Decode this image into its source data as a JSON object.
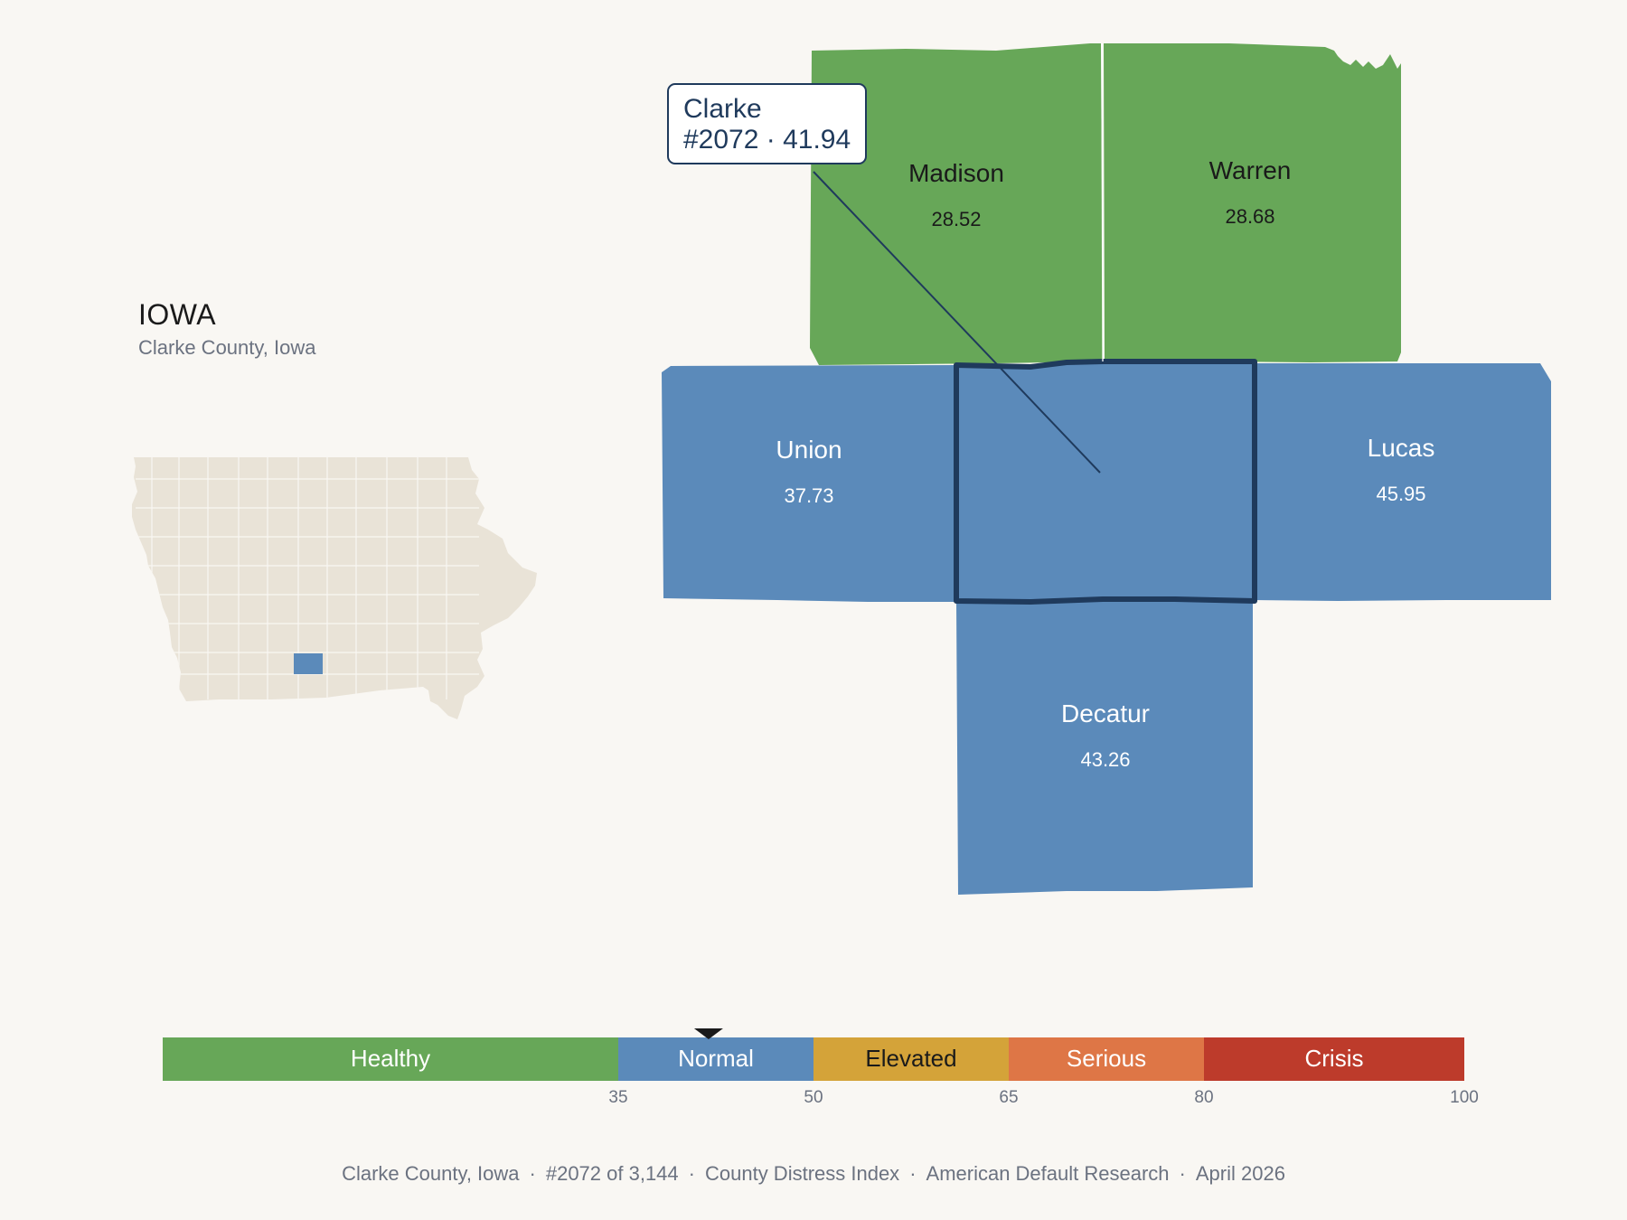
{
  "state": {
    "name": "IOWA",
    "subtitle": "Clarke County, Iowa"
  },
  "callout": {
    "name": "Clarke",
    "detail": "#2072 · 41.94"
  },
  "counties": [
    {
      "name": "Madison",
      "value": "28.52",
      "category": "Healthy"
    },
    {
      "name": "Warren",
      "value": "28.68",
      "category": "Healthy"
    },
    {
      "name": "Union",
      "value": "37.73",
      "category": "Normal"
    },
    {
      "name": "Clarke",
      "value": "41.94",
      "category": "Normal",
      "highlighted": true
    },
    {
      "name": "Lucas",
      "value": "45.95",
      "category": "Normal"
    },
    {
      "name": "Decatur",
      "value": "43.26",
      "category": "Normal"
    }
  ],
  "legend": {
    "min": 0,
    "max": 100,
    "marker_value": 41.94,
    "segments": [
      {
        "label": "Healthy",
        "from": 0,
        "to": 35,
        "color": "#67a758"
      },
      {
        "label": "Normal",
        "from": 35,
        "to": 50,
        "color": "#5b8aba"
      },
      {
        "label": "Elevated",
        "from": 50,
        "to": 65,
        "color": "#d4a339"
      },
      {
        "label": "Serious",
        "from": 65,
        "to": 80,
        "color": "#de7646"
      },
      {
        "label": "Crisis",
        "from": 80,
        "to": 100,
        "color": "#bd3b2b"
      }
    ],
    "ticks": [
      "35",
      "50",
      "65",
      "80",
      "100"
    ]
  },
  "colors": {
    "healthy": "#67a758",
    "normal": "#5b8aba",
    "outline": "#1f3a5c",
    "state_fill": "#e9e3d7",
    "background": "#f9f7f3"
  },
  "footer": {
    "items": [
      "Clarke County, Iowa",
      "#2072 of 3,144",
      "County Distress Index",
      "American Default Research",
      "April 2026"
    ]
  }
}
